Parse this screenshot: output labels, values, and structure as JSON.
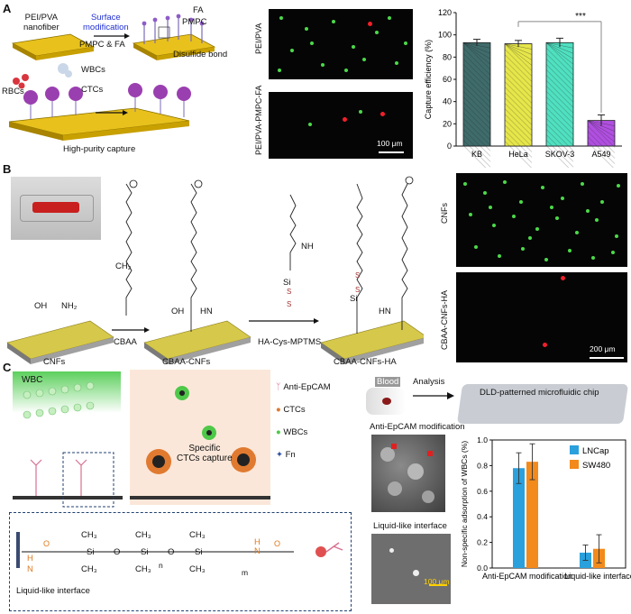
{
  "panels": {
    "A": {
      "letter": "A",
      "labels": {
        "nanofiber": "PEI/PVA nanofiber",
        "nanofiber_l1": "PEI/PVA",
        "nanofiber_l2": "nanofiber",
        "surface_mod_l1": "Surface",
        "surface_mod_l2": "modification",
        "pmpc_fa": "PMPC & FA",
        "fa": "FA",
        "pmpc": "PMPC",
        "disulfide": "Disulfide bond",
        "wbcs": "WBCs",
        "rbcs": "RBCs",
        "ctcs": "CTCs",
        "high_purity": "High-purity capture",
        "img1_label": "PEI/PVA",
        "img2_label": "PEI/PVA-PMPC-FA",
        "scale": "100 μm"
      }
    },
    "B": {
      "letter": "B",
      "labels": {
        "cnfs": "CNFs",
        "cbaa_step": "CBAA",
        "cbaa_cnfs": "CBAA-CNFs",
        "ha_cys": "HA-Cys-MPTMS",
        "cbaa_cnfs_ha": "CBAA-CNFs-HA",
        "img1_label": "CNFs",
        "img2_label": "CBAA-CNFs-HA",
        "scale": "200 μm"
      },
      "chem_labels": {
        "oh": "OH",
        "nh2": "NH₂",
        "nh": "NH",
        "hn": "HN",
        "o": "O",
        "ch2": "CH₂",
        "ch": "CH",
        "s": "S",
        "si": "Si",
        "n_plus": "N",
        "c": "C"
      }
    },
    "C": {
      "letter": "C",
      "labels": {
        "wbc": "WBC",
        "specific_l1": "Specific",
        "specific_l2": "CTCs capture",
        "legend_antiepcam": "Anti-EpCAM",
        "legend_ctcs": "CTCs",
        "legend_wbcs": "WBCs",
        "legend_fn": "Fn",
        "blood": "Blood",
        "analysis": "Analysis",
        "chip": "DLD-patterned microfluidic chip",
        "sem1_title": "Anti-EpCAM modification",
        "sem2_title": "Liquid-like interface",
        "sem_scale": "100 μm",
        "liquid_like": "Liquid-like interface",
        "ch3": "CH₃",
        "si": "Si",
        "o": "O",
        "n_sub": "n",
        "m_sub": "m",
        "h": "H",
        "n": "N"
      }
    }
  },
  "chart_data": [
    {
      "type": "bar",
      "categories": [
        "KB",
        "HeLa",
        "SKOV-3",
        "A549"
      ],
      "values": [
        93,
        92,
        93,
        23
      ],
      "errors": [
        3,
        3,
        4,
        5
      ],
      "colors": [
        "#3f6b6b",
        "#e6e64a",
        "#4fe0c0",
        "#b04fe0"
      ],
      "ylabel": "Capture efficiency (%)",
      "ylim": [
        0,
        120
      ],
      "yticks": [
        0,
        20,
        40,
        60,
        80,
        100,
        120
      ],
      "significance": "***",
      "grid": false
    },
    {
      "type": "bar",
      "categories": [
        "Anti-EpCAM modification",
        "Liquid-like interface"
      ],
      "series": [
        {
          "name": "LNCap",
          "values": [
            0.78,
            0.12
          ],
          "errors": [
            0.12,
            0.06
          ],
          "color": "#2aa0dc"
        },
        {
          "name": "SW480",
          "values": [
            0.83,
            0.15
          ],
          "errors": [
            0.14,
            0.11
          ],
          "color": "#f28a1c"
        }
      ],
      "ylabel": "Non-specific adsorption of WBCs (%)",
      "ylim": [
        0,
        1.0
      ],
      "yticks": [
        0.0,
        0.2,
        0.4,
        0.6,
        0.8,
        1.0
      ],
      "legend": "top-right",
      "grid": false
    }
  ]
}
